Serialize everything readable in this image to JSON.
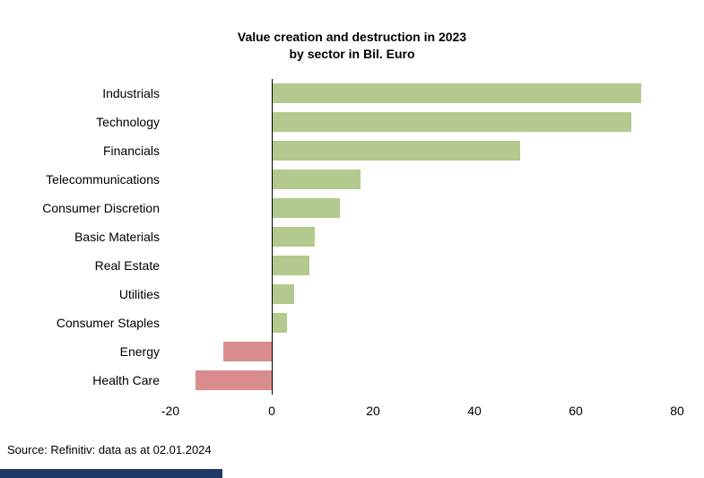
{
  "title": {
    "line1": "Value creation and destruction in 2023",
    "line2": "by sector in Bil. Euro"
  },
  "source": "Source: Refinitiv: data as at 02.01.2024",
  "colors": {
    "positive_bar": "#b3c98e",
    "negative_bar": "#d98c8c",
    "axis_line": "#000000",
    "footer_accent": "#1f3864"
  },
  "chart_data": {
    "type": "bar",
    "orientation": "horizontal",
    "title": "Value creation and destruction in 2023 by sector in Bil. Euro",
    "xlabel": "",
    "ylabel": "",
    "xlim": [
      -20,
      80
    ],
    "xticks": [
      -20,
      0,
      20,
      40,
      60,
      80
    ],
    "grid": false,
    "legend": false,
    "categories": [
      "Industrials",
      "Technology",
      "Financials",
      "Telecommunications",
      "Consumer Discretion",
      "Basic Materials",
      "Real Estate",
      "Utilities",
      "Consumer Staples",
      "Energy",
      "Health Care"
    ],
    "values": [
      73,
      71,
      49,
      17.5,
      13.5,
      8.5,
      7.5,
      4.5,
      3,
      -9.5,
      -15
    ]
  }
}
